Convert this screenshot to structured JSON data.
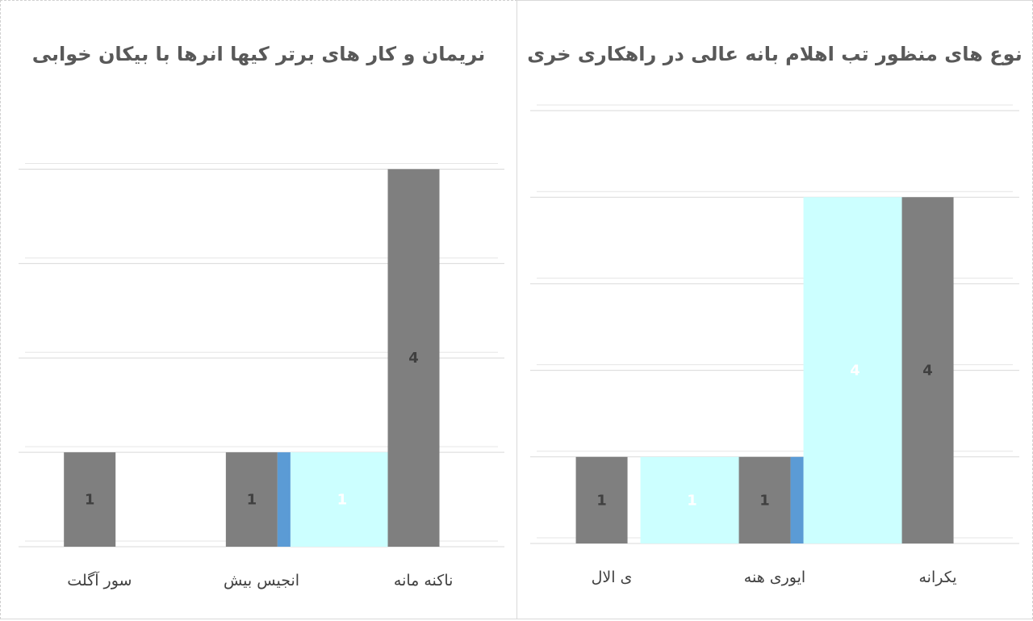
{
  "charts": [
    {
      "title": "نریمان و کار های برتر کیها انرها با بیکان خوابی",
      "colors": {
        "gray": "#7f7f7f",
        "cyan": "#ccffff",
        "blue": "#5b9bd5",
        "grid": "#d9d9d9"
      }
    },
    {
      "title": "نوع های منظور تب اهلام بانه عالی در راهکاری خری",
      "colors": {
        "gray": "#7f7f7f",
        "cyan": "#ccffff",
        "blue": "#5b9bd5",
        "grid": "#d9d9d9"
      }
    }
  ],
  "chart_data": [
    {
      "type": "bar",
      "title": "نریمان و کار های برتر کیها انرها با بیکان خوابی",
      "categories": [
        "سور آگلت",
        "انجیس بیش",
        "ناکنه مانه"
      ],
      "series": [
        {
          "values": [
            1,
            1,
            4
          ],
          "color": "#7f7f7f",
          "labels": [
            "1",
            "1",
            "4"
          ]
        },
        {
          "values": [
            null,
            1,
            null
          ],
          "color": "#ccffff",
          "labels": [
            "",
            "1",
            ""
          ]
        },
        {
          "values": [
            null,
            1,
            null
          ],
          "color": "#5b9bd5",
          "labels": [
            "",
            "",
            ""
          ]
        }
      ],
      "ylim": [
        0,
        4.5
      ],
      "grid": true
    },
    {
      "type": "bar",
      "title": "نوع های منظور تب اهلام بانه عالی در راهکاری خری",
      "categories": [
        "ی الال",
        "ایوری هنه",
        "یکرانه"
      ],
      "series": [
        {
          "values": [
            1,
            1,
            4
          ],
          "color": "#7f7f7f",
          "labels": [
            "1",
            "1",
            "4"
          ]
        },
        {
          "values": [
            1,
            4,
            null
          ],
          "color": "#ccffff",
          "labels": [
            "1",
            "4",
            ""
          ]
        },
        {
          "values": [
            null,
            1,
            null
          ],
          "color": "#5b9bd5",
          "labels": [
            "",
            "",
            ""
          ]
        }
      ],
      "ylim": [
        0,
        5
      ],
      "grid": true
    }
  ]
}
